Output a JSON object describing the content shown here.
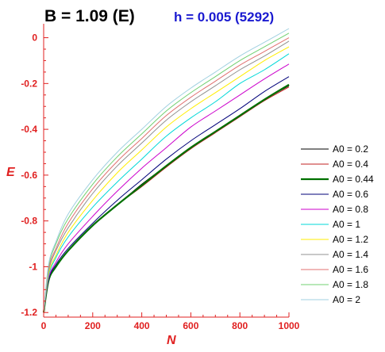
{
  "chart_data": {
    "type": "line",
    "title": "B = 1.09 (E)",
    "subtitle": "h = 0.005 (5292)",
    "xlabel": "N",
    "ylabel": "E",
    "xlim": [
      0,
      1000
    ],
    "ylim": [
      -1.22,
      0.04
    ],
    "xticks": [
      0,
      200,
      400,
      600,
      800,
      1000
    ],
    "yticks": [
      0,
      -0.2,
      -0.4,
      -0.6,
      -0.8,
      -1,
      -1.2
    ],
    "xtick_labels": [
      "0",
      "200",
      "400",
      "600",
      "800",
      "1000"
    ],
    "ytick_labels": [
      "0",
      "-0.2",
      "-0.4",
      "-0.6",
      "-0.8",
      "-1",
      "-1.2"
    ],
    "grid": false,
    "legend_position": "right",
    "x": [
      0,
      20,
      50,
      100,
      200,
      300,
      400,
      500,
      600,
      700,
      800,
      900,
      1000
    ],
    "series": [
      {
        "name": "A0 = 0.2",
        "color": "#000000",
        "values": [
          -1.2,
          -1.06,
          -1.0,
          -0.93,
          -0.82,
          -0.73,
          -0.64,
          -0.56,
          -0.48,
          -0.41,
          -0.34,
          -0.27,
          -0.21
        ]
      },
      {
        "name": "A0 = 0.4",
        "color": "#c02020",
        "values": [
          -1.2,
          -1.06,
          -1.0,
          -0.93,
          -0.82,
          -0.73,
          -0.65,
          -0.565,
          -0.485,
          -0.415,
          -0.345,
          -0.275,
          -0.215
        ]
      },
      {
        "name": "A0 = 0.44",
        "color": "#007000",
        "values": [
          -1.2,
          -1.06,
          -1.0,
          -0.93,
          -0.82,
          -0.73,
          -0.645,
          -0.56,
          -0.48,
          -0.41,
          -0.34,
          -0.27,
          -0.205
        ]
      },
      {
        "name": "A0 = 0.6",
        "color": "#00007a",
        "values": [
          -1.2,
          -1.055,
          -0.99,
          -0.92,
          -0.81,
          -0.71,
          -0.62,
          -0.53,
          -0.45,
          -0.38,
          -0.31,
          -0.235,
          -0.17
        ]
      },
      {
        "name": "A0 = 0.8",
        "color": "#cc00cc",
        "values": [
          -1.2,
          -1.05,
          -0.98,
          -0.9,
          -0.78,
          -0.67,
          -0.57,
          -0.48,
          -0.39,
          -0.32,
          -0.25,
          -0.18,
          -0.115
        ]
      },
      {
        "name": "A0 = 1",
        "color": "#00d8d8",
        "values": [
          -1.2,
          -1.04,
          -0.96,
          -0.87,
          -0.74,
          -0.63,
          -0.53,
          -0.43,
          -0.35,
          -0.28,
          -0.2,
          -0.14,
          -0.07
        ]
      },
      {
        "name": "A0 = 1.2",
        "color": "#ffee00",
        "values": [
          -1.2,
          -1.03,
          -0.95,
          -0.85,
          -0.71,
          -0.59,
          -0.49,
          -0.39,
          -0.31,
          -0.24,
          -0.17,
          -0.1,
          -0.04
        ]
      },
      {
        "name": "A0 = 1.4",
        "color": "#909090",
        "values": [
          -1.2,
          -1.02,
          -0.93,
          -0.83,
          -0.68,
          -0.56,
          -0.46,
          -0.36,
          -0.28,
          -0.21,
          -0.14,
          -0.08,
          -0.015
        ]
      },
      {
        "name": "A0 = 1.6",
        "color": "#e07070",
        "values": [
          -1.2,
          -1.01,
          -0.92,
          -0.81,
          -0.66,
          -0.54,
          -0.44,
          -0.34,
          -0.26,
          -0.19,
          -0.12,
          -0.06,
          0.0
        ]
      },
      {
        "name": "A0 = 1.8",
        "color": "#70d070",
        "values": [
          -1.2,
          -1.0,
          -0.9,
          -0.79,
          -0.64,
          -0.52,
          -0.42,
          -0.32,
          -0.24,
          -0.17,
          -0.1,
          -0.04,
          0.02
        ]
      },
      {
        "name": "A0 = 2",
        "color": "#a0d0e0",
        "values": [
          -1.2,
          -0.99,
          -0.89,
          -0.77,
          -0.62,
          -0.5,
          -0.4,
          -0.3,
          -0.22,
          -0.15,
          -0.08,
          -0.02,
          0.04
        ]
      }
    ]
  }
}
